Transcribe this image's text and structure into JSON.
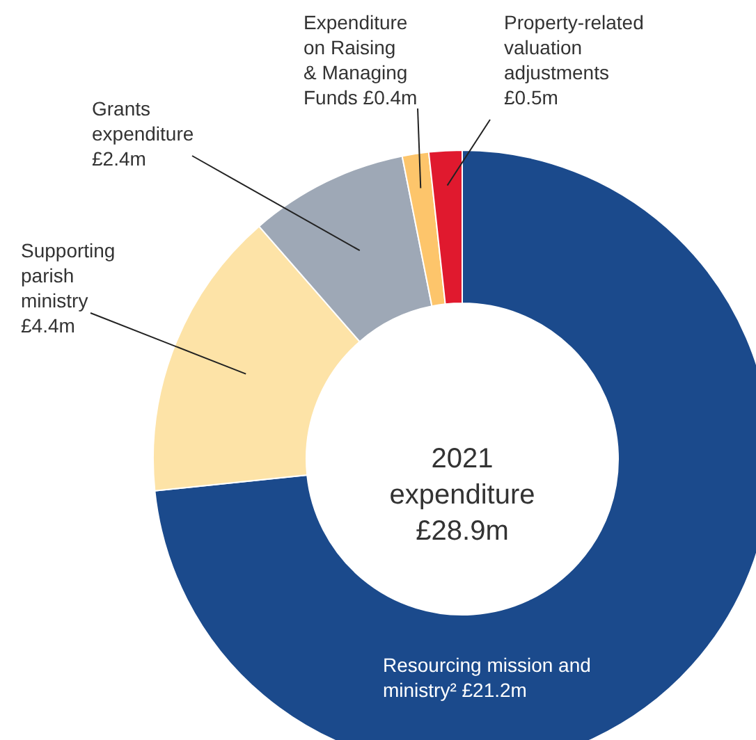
{
  "chart_data": {
    "type": "donut",
    "categories": [
      "Resourcing mission and\nministry²",
      "Supporting\nparish\nministry",
      "Grants\nexpenditure",
      "Expenditure\non Raising\n& Managing\nFunds",
      "Property-related\nvaluation\nadjustments"
    ],
    "values": [
      21.2,
      4.4,
      2.4,
      0.4,
      0.5
    ],
    "value_labels": [
      "£21.2m",
      "£4.4m",
      "£2.4m",
      "£0.4m",
      "£0.5m"
    ],
    "colors": [
      "#1b4a8c",
      "#fde3a7",
      "#9ea8b6",
      "#fdc56b",
      "#e0192e"
    ],
    "annotations": [
      "2021\nexpenditure\n£28.9m"
    ]
  }
}
